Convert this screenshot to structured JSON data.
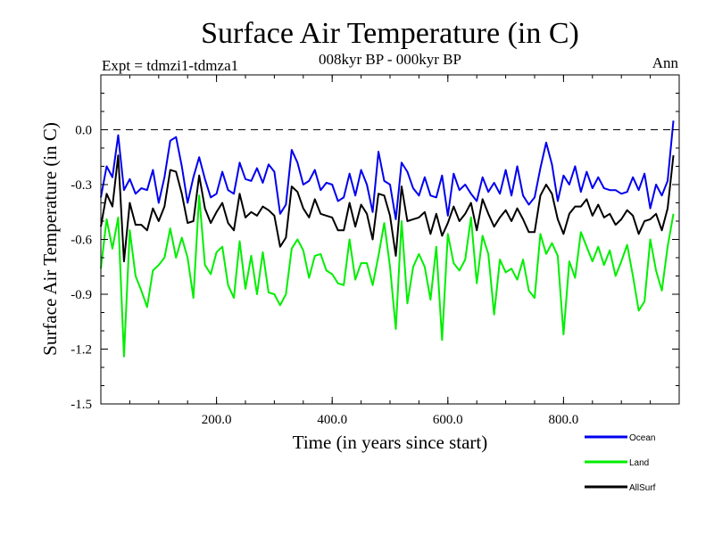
{
  "chart_data": {
    "type": "line",
    "title": "Surface Air Temperature (in C)",
    "subtitle_left": "Expt = tdmzi1-tdmza1",
    "subtitle_center": "008kyr BP - 000kyr BP",
    "subtitle_right": "Ann",
    "xlabel": "Time (in years since start)",
    "ylabel": "Surface Air Temperature (in C)",
    "xlim": [
      0,
      1000
    ],
    "ylim": [
      -1.5,
      0.3
    ],
    "xticks": [
      200,
      400,
      600,
      800
    ],
    "xtick_labels": [
      "200.0",
      "400.0",
      "600.0",
      "800.0"
    ],
    "yticks": [
      0.0,
      -0.3,
      -0.6,
      -0.9,
      -1.2,
      -1.5
    ],
    "ytick_labels": [
      "0.0",
      "-0.3",
      "-0.6",
      "-0.9",
      "-1.2",
      "-1.5"
    ],
    "reference_line": 0.0,
    "legend_position": "bottom-right",
    "x_step": 10,
    "series": [
      {
        "name": "Ocean",
        "color": "#0000ee",
        "values": [
          -0.37,
          -0.2,
          -0.26,
          -0.03,
          -0.33,
          -0.27,
          -0.35,
          -0.32,
          -0.33,
          -0.22,
          -0.4,
          -0.26,
          -0.06,
          -0.04,
          -0.2,
          -0.4,
          -0.26,
          -0.15,
          -0.27,
          -0.37,
          -0.35,
          -0.23,
          -0.33,
          -0.35,
          -0.18,
          -0.27,
          -0.28,
          -0.21,
          -0.29,
          -0.19,
          -0.23,
          -0.46,
          -0.41,
          -0.11,
          -0.18,
          -0.3,
          -0.28,
          -0.22,
          -0.33,
          -0.29,
          -0.3,
          -0.39,
          -0.37,
          -0.24,
          -0.36,
          -0.22,
          -0.3,
          -0.45,
          -0.12,
          -0.28,
          -0.3,
          -0.49,
          -0.18,
          -0.23,
          -0.32,
          -0.36,
          -0.26,
          -0.36,
          -0.37,
          -0.25,
          -0.47,
          -0.24,
          -0.33,
          -0.3,
          -0.35,
          -0.39,
          -0.26,
          -0.34,
          -0.29,
          -0.35,
          -0.22,
          -0.36,
          -0.2,
          -0.36,
          -0.41,
          -0.37,
          -0.21,
          -0.07,
          -0.19,
          -0.39,
          -0.25,
          -0.3,
          -0.2,
          -0.34,
          -0.23,
          -0.32,
          -0.26,
          -0.32,
          -0.33,
          -0.33,
          -0.35,
          -0.34,
          -0.26,
          -0.33,
          -0.24,
          -0.43,
          -0.3,
          -0.36,
          -0.28,
          0.05
        ]
      },
      {
        "name": "Land",
        "color": "#00ee00",
        "values": [
          -0.76,
          -0.49,
          -0.65,
          -0.48,
          -1.24,
          -0.55,
          -0.8,
          -0.88,
          -0.97,
          -0.77,
          -0.74,
          -0.7,
          -0.54,
          -0.7,
          -0.59,
          -0.7,
          -0.92,
          -0.36,
          -0.74,
          -0.79,
          -0.67,
          -0.64,
          -0.85,
          -0.92,
          -0.61,
          -0.87,
          -0.69,
          -0.9,
          -0.67,
          -0.89,
          -0.9,
          -0.96,
          -0.9,
          -0.65,
          -0.6,
          -0.66,
          -0.81,
          -0.69,
          -0.68,
          -0.77,
          -0.79,
          -0.84,
          -0.85,
          -0.6,
          -0.82,
          -0.73,
          -0.73,
          -0.85,
          -0.69,
          -0.51,
          -0.75,
          -1.09,
          -0.5,
          -0.95,
          -0.75,
          -0.68,
          -0.75,
          -0.93,
          -0.64,
          -1.15,
          -0.57,
          -0.73,
          -0.77,
          -0.71,
          -0.48,
          -0.84,
          -0.58,
          -0.68,
          -1.01,
          -0.71,
          -0.78,
          -0.76,
          -0.82,
          -0.71,
          -0.88,
          -0.92,
          -0.57,
          -0.68,
          -0.62,
          -0.69,
          -1.12,
          -0.72,
          -0.81,
          -0.56,
          -0.64,
          -0.72,
          -0.64,
          -0.74,
          -0.66,
          -0.8,
          -0.72,
          -0.63,
          -0.8,
          -0.99,
          -0.94,
          -0.6,
          -0.77,
          -0.88,
          -0.64,
          -0.46
        ]
      },
      {
        "name": "AllSurf",
        "color": "#000000",
        "values": [
          -0.53,
          -0.35,
          -0.42,
          -0.14,
          -0.72,
          -0.4,
          -0.52,
          -0.52,
          -0.55,
          -0.43,
          -0.5,
          -0.42,
          -0.22,
          -0.23,
          -0.35,
          -0.51,
          -0.5,
          -0.25,
          -0.43,
          -0.51,
          -0.45,
          -0.4,
          -0.51,
          -0.55,
          -0.35,
          -0.48,
          -0.45,
          -0.47,
          -0.42,
          -0.44,
          -0.47,
          -0.64,
          -0.59,
          -0.31,
          -0.34,
          -0.43,
          -0.48,
          -0.38,
          -0.46,
          -0.47,
          -0.48,
          -0.55,
          -0.55,
          -0.4,
          -0.53,
          -0.41,
          -0.46,
          -0.6,
          -0.35,
          -0.36,
          -0.47,
          -0.69,
          -0.31,
          -0.5,
          -0.49,
          -0.48,
          -0.45,
          -0.57,
          -0.46,
          -0.58,
          -0.51,
          -0.42,
          -0.5,
          -0.46,
          -0.4,
          -0.55,
          -0.38,
          -0.46,
          -0.53,
          -0.48,
          -0.44,
          -0.5,
          -0.43,
          -0.49,
          -0.56,
          -0.56,
          -0.36,
          -0.3,
          -0.35,
          -0.49,
          -0.57,
          -0.46,
          -0.42,
          -0.42,
          -0.38,
          -0.47,
          -0.41,
          -0.48,
          -0.46,
          -0.52,
          -0.49,
          -0.44,
          -0.47,
          -0.57,
          -0.5,
          -0.49,
          -0.46,
          -0.55,
          -0.43,
          -0.14
        ]
      }
    ]
  }
}
